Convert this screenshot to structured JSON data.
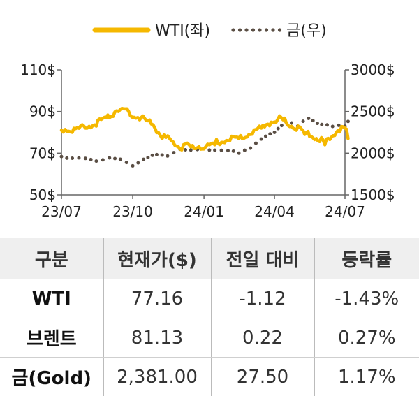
{
  "chart_data": {
    "type": "line",
    "title": "",
    "legend": [
      "WTI(좌)",
      "금(우)"
    ],
    "legend_position": "top",
    "x_ticks": [
      "23/07",
      "23/10",
      "24/01",
      "24/04",
      "24/07"
    ],
    "left_axis": {
      "ticks": [
        "50$",
        "70$",
        "90$",
        "110$"
      ],
      "range": [
        50,
        110
      ]
    },
    "right_axis": {
      "ticks": [
        "1500$",
        "2000$",
        "2500$",
        "3000$"
      ],
      "range": [
        1500,
        3000
      ]
    },
    "colors": {
      "wti": "#f5b800",
      "gold": "#5a4e44"
    },
    "grid": false,
    "series": [
      {
        "name": "WTI(좌)",
        "axis": "left",
        "x": [
          "2023-07-01",
          "2023-07-15",
          "2023-08-01",
          "2023-08-15",
          "2023-09-01",
          "2023-09-15",
          "2023-09-28",
          "2023-10-10",
          "2023-10-25",
          "2023-11-08",
          "2023-11-20",
          "2023-12-01",
          "2023-12-15",
          "2024-01-01",
          "2024-01-15",
          "2024-02-01",
          "2024-02-15",
          "2024-03-01",
          "2024-03-15",
          "2024-04-01",
          "2024-04-12",
          "2024-04-25",
          "2024-05-10",
          "2024-05-25",
          "2024-06-05",
          "2024-06-20",
          "2024-07-01",
          "2024-07-05"
        ],
        "values": [
          81,
          80,
          82,
          83,
          87,
          91,
          88,
          86,
          84,
          77,
          76,
          72,
          73,
          72,
          74,
          76,
          77,
          79,
          82,
          85,
          86,
          82,
          79,
          77,
          74,
          80,
          82,
          77
        ]
      },
      {
        "name": "금(우)",
        "axis": "right",
        "x": [
          "2023-07-01",
          "2023-07-15",
          "2023-08-01",
          "2023-08-15",
          "2023-09-01",
          "2023-09-15",
          "2023-10-01",
          "2023-10-15",
          "2023-11-01",
          "2023-11-15",
          "2023-12-01",
          "2023-12-15",
          "2024-01-01",
          "2024-01-15",
          "2024-02-01",
          "2024-02-15",
          "2024-03-01",
          "2024-03-15",
          "2024-04-01",
          "2024-04-15",
          "2024-05-01",
          "2024-05-15",
          "2024-06-01",
          "2024-06-15",
          "2024-07-01",
          "2024-07-05"
        ],
        "values": [
          1960,
          1940,
          1945,
          1915,
          1940,
          1930,
          1850,
          1920,
          1990,
          1975,
          2040,
          2040,
          2060,
          2030,
          2035,
          2010,
          2060,
          2170,
          2260,
          2380,
          2330,
          2420,
          2340,
          2330,
          2330,
          2381
        ]
      }
    ]
  },
  "table": {
    "headers": [
      "구분",
      "현재가($)",
      "전일 대비",
      "등락률"
    ],
    "rows": [
      [
        "WTI",
        "77.16",
        "-1.12",
        "-1.43%"
      ],
      [
        "브렌트",
        "81.13",
        "0.22",
        "0.27%"
      ],
      [
        "금(Gold)",
        "2,381.00",
        "27.50",
        "1.17%"
      ]
    ]
  }
}
